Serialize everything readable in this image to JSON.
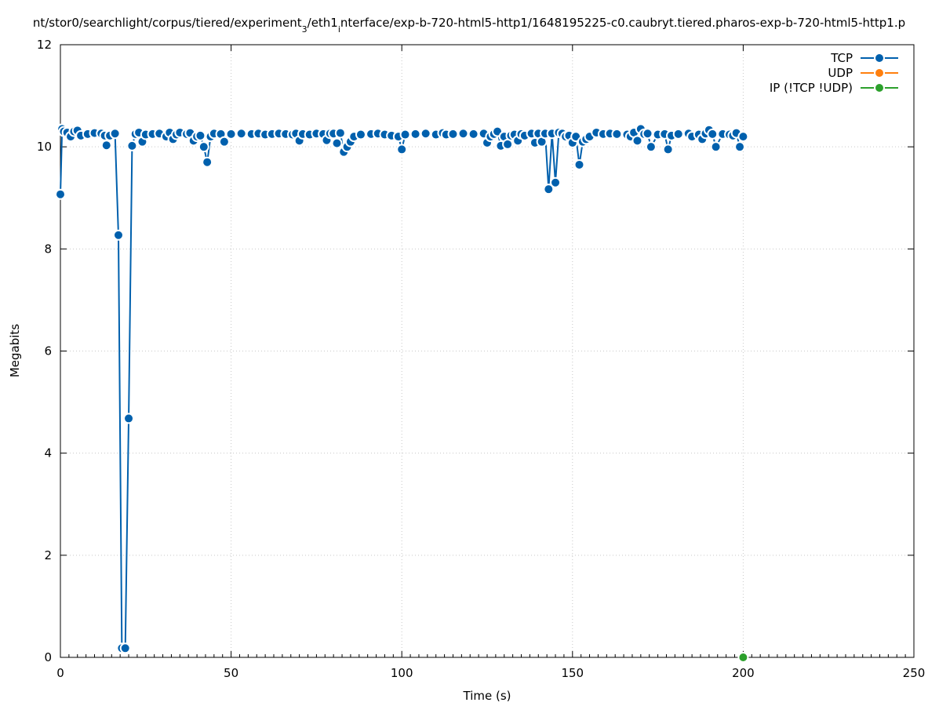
{
  "chart_data": {
    "type": "line",
    "title": "nt/stor0/searchlight/corpus/tiered/experiment",
    "title_sub_1": "3",
    "title_mid": "/eth1",
    "title_sub_2": "i",
    "title_end": "nterface/exp-b-720-html5-http1/1648195225-c0.caubryt.tiered.pharos-exp-b-720-html5-http1.p",
    "xlabel": "Time (s)",
    "ylabel": "Megabits",
    "xlim": [
      0,
      250
    ],
    "ylim": [
      0,
      12
    ],
    "x_ticks": [
      "0",
      "50",
      "100",
      "150",
      "200",
      "250"
    ],
    "y_ticks": [
      "0",
      "2",
      "4",
      "6",
      "8",
      "10",
      "12"
    ],
    "grid": true,
    "legend_position": "top-right",
    "series": [
      {
        "name": "TCP",
        "color": "#0060ad",
        "points": [
          [
            0,
            9.07
          ],
          [
            0.5,
            10.35
          ],
          [
            1,
            10.3
          ],
          [
            2,
            10.28
          ],
          [
            3,
            10.2
          ],
          [
            4,
            10.3
          ],
          [
            5,
            10.32
          ],
          [
            6,
            10.22
          ],
          [
            8,
            10.25
          ],
          [
            10,
            10.27
          ],
          [
            12,
            10.26
          ],
          [
            13,
            10.22
          ],
          [
            13.5,
            10.03
          ],
          [
            14.5,
            10.22
          ],
          [
            16,
            10.26
          ],
          [
            17,
            8.27
          ],
          [
            18,
            0.18
          ],
          [
            19,
            0.18
          ],
          [
            20,
            4.68
          ],
          [
            21,
            10.02
          ],
          [
            22,
            10.25
          ],
          [
            23,
            10.28
          ],
          [
            24,
            10.1
          ],
          [
            25,
            10.24
          ],
          [
            27,
            10.25
          ],
          [
            29,
            10.26
          ],
          [
            31,
            10.2
          ],
          [
            32,
            10.28
          ],
          [
            33,
            10.15
          ],
          [
            34,
            10.24
          ],
          [
            35,
            10.28
          ],
          [
            37,
            10.25
          ],
          [
            38,
            10.27
          ],
          [
            39,
            10.12
          ],
          [
            40,
            10.2
          ],
          [
            41,
            10.22
          ],
          [
            42,
            10.0
          ],
          [
            43,
            9.7
          ],
          [
            44,
            10.2
          ],
          [
            45,
            10.26
          ],
          [
            47,
            10.25
          ],
          [
            48,
            10.1
          ],
          [
            50,
            10.25
          ],
          [
            53,
            10.26
          ],
          [
            56,
            10.25
          ],
          [
            58,
            10.26
          ],
          [
            60,
            10.24
          ],
          [
            62,
            10.25
          ],
          [
            64,
            10.26
          ],
          [
            66,
            10.25
          ],
          [
            68,
            10.24
          ],
          [
            69,
            10.26
          ],
          [
            70,
            10.12
          ],
          [
            71,
            10.25
          ],
          [
            73,
            10.24
          ],
          [
            75,
            10.26
          ],
          [
            77,
            10.25
          ],
          [
            78,
            10.13
          ],
          [
            79,
            10.26
          ],
          [
            80,
            10.26
          ],
          [
            81,
            10.07
          ],
          [
            82,
            10.27
          ],
          [
            83,
            9.9
          ],
          [
            84,
            10.0
          ],
          [
            85,
            10.1
          ],
          [
            86,
            10.2
          ],
          [
            88,
            10.24
          ],
          [
            91,
            10.25
          ],
          [
            93,
            10.26
          ],
          [
            95,
            10.24
          ],
          [
            97,
            10.22
          ],
          [
            99,
            10.2
          ],
          [
            100,
            9.95
          ],
          [
            101,
            10.24
          ],
          [
            104,
            10.25
          ],
          [
            107,
            10.26
          ],
          [
            110,
            10.24
          ],
          [
            112,
            10.27
          ],
          [
            113,
            10.24
          ],
          [
            115,
            10.25
          ],
          [
            118,
            10.26
          ],
          [
            121,
            10.25
          ],
          [
            124,
            10.26
          ],
          [
            125,
            10.08
          ],
          [
            126,
            10.2
          ],
          [
            127,
            10.25
          ],
          [
            128,
            10.3
          ],
          [
            129,
            10.02
          ],
          [
            130,
            10.2
          ],
          [
            131,
            10.05
          ],
          [
            132,
            10.22
          ],
          [
            133,
            10.24
          ],
          [
            134,
            10.12
          ],
          [
            135,
            10.25
          ],
          [
            136,
            10.22
          ],
          [
            138,
            10.26
          ],
          [
            139,
            10.08
          ],
          [
            140,
            10.26
          ],
          [
            141,
            10.1
          ],
          [
            142,
            10.26
          ],
          [
            143,
            9.17
          ],
          [
            144,
            10.26
          ],
          [
            145,
            9.3
          ],
          [
            146,
            10.28
          ],
          [
            147,
            10.26
          ],
          [
            148,
            10.2
          ],
          [
            149,
            10.22
          ],
          [
            150,
            10.08
          ],
          [
            151,
            10.2
          ],
          [
            152,
            9.65
          ],
          [
            153,
            10.1
          ],
          [
            154,
            10.15
          ],
          [
            155,
            10.2
          ],
          [
            157,
            10.28
          ],
          [
            159,
            10.25
          ],
          [
            161,
            10.26
          ],
          [
            163,
            10.25
          ],
          [
            166,
            10.24
          ],
          [
            167,
            10.2
          ],
          [
            168,
            10.28
          ],
          [
            169,
            10.12
          ],
          [
            170,
            10.35
          ],
          [
            171,
            10.25
          ],
          [
            172,
            10.26
          ],
          [
            173,
            10.0
          ],
          [
            175,
            10.24
          ],
          [
            177,
            10.25
          ],
          [
            178,
            9.95
          ],
          [
            179,
            10.22
          ],
          [
            181,
            10.25
          ],
          [
            184,
            10.26
          ],
          [
            185,
            10.2
          ],
          [
            187,
            10.24
          ],
          [
            188,
            10.15
          ],
          [
            189,
            10.26
          ],
          [
            190,
            10.33
          ],
          [
            191,
            10.25
          ],
          [
            192,
            10.0
          ],
          [
            194,
            10.25
          ],
          [
            196,
            10.24
          ],
          [
            197,
            10.22
          ],
          [
            198,
            10.27
          ],
          [
            199,
            10.0
          ],
          [
            200,
            10.2
          ]
        ]
      },
      {
        "name": "UDP",
        "color": "#ff7f0e",
        "points": []
      },
      {
        "name": "IP (!TCP  !UDP)",
        "color": "#2ca02c",
        "points": [
          [
            200,
            0.0
          ]
        ]
      }
    ]
  }
}
